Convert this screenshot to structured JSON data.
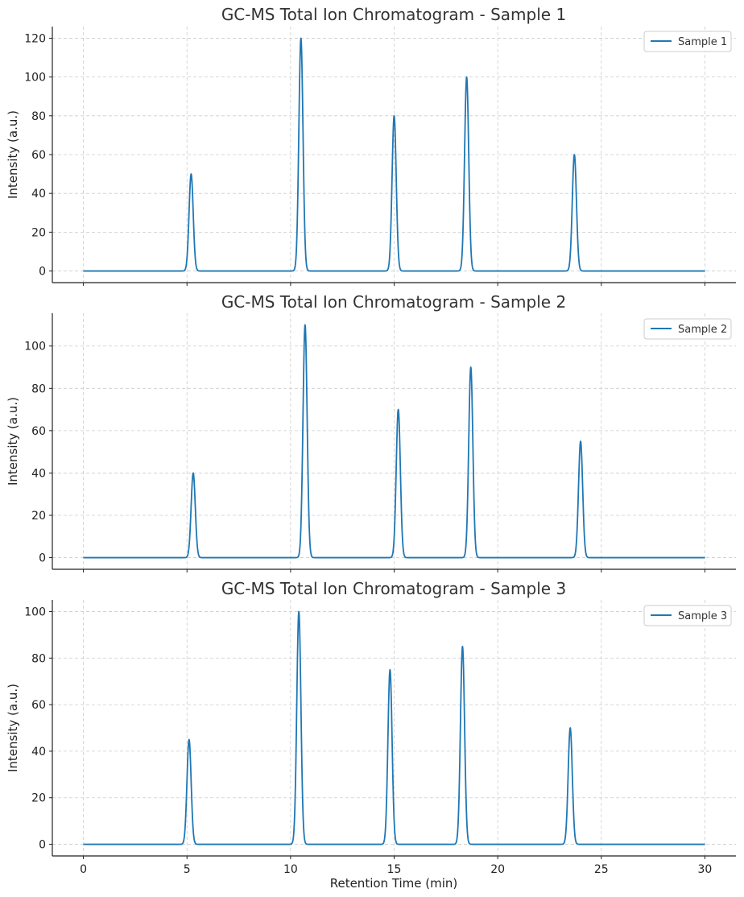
{
  "chart_data": [
    {
      "type": "line",
      "title": "GC-MS Total Ion Chromatogram - Sample 1",
      "xlabel": "",
      "ylabel": "Intensity (a.u.)",
      "xlim": [
        -1.5,
        31.5
      ],
      "ylim": [
        -6,
        126
      ],
      "xticks": [
        0,
        5,
        10,
        15,
        20,
        25,
        30
      ],
      "yticks": [
        0,
        20,
        40,
        60,
        80,
        100,
        120
      ],
      "show_x_tick_labels": false,
      "grid": true,
      "legend": "top-right",
      "series": [
        {
          "name": "Sample 1",
          "color": "#1f77b4",
          "peaks": [
            {
              "retention_time": 5.2,
              "intensity": 50
            },
            {
              "retention_time": 10.5,
              "intensity": 120
            },
            {
              "retention_time": 15.0,
              "intensity": 80
            },
            {
              "retention_time": 18.5,
              "intensity": 100
            },
            {
              "retention_time": 23.7,
              "intensity": 60
            }
          ]
        }
      ]
    },
    {
      "type": "line",
      "title": "GC-MS Total Ion Chromatogram - Sample 2",
      "xlabel": "",
      "ylabel": "Intensity (a.u.)",
      "xlim": [
        -1.5,
        31.5
      ],
      "ylim": [
        -5.5,
        115.5
      ],
      "xticks": [
        0,
        5,
        10,
        15,
        20,
        25,
        30
      ],
      "yticks": [
        0,
        20,
        40,
        60,
        80,
        100
      ],
      "show_x_tick_labels": false,
      "grid": true,
      "legend": "top-right",
      "series": [
        {
          "name": "Sample 2",
          "color": "#1f77b4",
          "peaks": [
            {
              "retention_time": 5.3,
              "intensity": 40
            },
            {
              "retention_time": 10.7,
              "intensity": 110
            },
            {
              "retention_time": 15.2,
              "intensity": 70
            },
            {
              "retention_time": 18.7,
              "intensity": 90
            },
            {
              "retention_time": 24.0,
              "intensity": 55
            }
          ]
        }
      ]
    },
    {
      "type": "line",
      "title": "GC-MS Total Ion Chromatogram - Sample 3",
      "xlabel": "Retention Time (min)",
      "ylabel": "Intensity (a.u.)",
      "xlim": [
        -1.5,
        31.5
      ],
      "ylim": [
        -5,
        105
      ],
      "xticks": [
        0,
        5,
        10,
        15,
        20,
        25,
        30
      ],
      "yticks": [
        0,
        20,
        40,
        60,
        80,
        100
      ],
      "show_x_tick_labels": true,
      "grid": true,
      "legend": "top-right",
      "series": [
        {
          "name": "Sample 3",
          "color": "#1f77b4",
          "peaks": [
            {
              "retention_time": 5.1,
              "intensity": 45
            },
            {
              "retention_time": 10.4,
              "intensity": 100
            },
            {
              "retention_time": 14.8,
              "intensity": 75
            },
            {
              "retention_time": 18.3,
              "intensity": 85
            },
            {
              "retention_time": 23.5,
              "intensity": 50
            }
          ]
        }
      ]
    }
  ]
}
